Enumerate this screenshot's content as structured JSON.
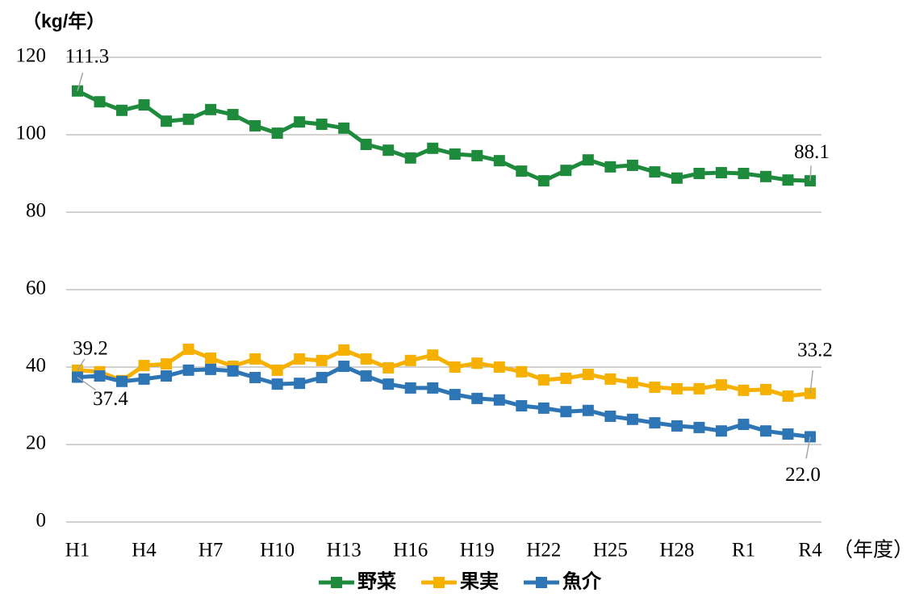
{
  "chart_data": {
    "type": "line",
    "y_label": "（kg/年）",
    "x_label": "（年度）",
    "categories": [
      "H1",
      null,
      null,
      "H4",
      null,
      null,
      "H7",
      null,
      null,
      "H10",
      null,
      null,
      "H13",
      null,
      null,
      "H16",
      null,
      null,
      "H19",
      null,
      null,
      "H22",
      null,
      null,
      "H25",
      null,
      null,
      "H28",
      null,
      null,
      "R1",
      null,
      null,
      "R4"
    ],
    "series": [
      {
        "name": "野菜",
        "color": "#1e8a3c",
        "values": [
          111.3,
          108.5,
          106.3,
          107.7,
          103.5,
          104.0,
          106.5,
          105.2,
          102.3,
          100.4,
          103.3,
          102.7,
          101.7,
          97.5,
          96.0,
          94.0,
          96.5,
          95.0,
          94.6,
          93.3,
          90.6,
          88.1,
          90.8,
          93.5,
          91.7,
          92.1,
          90.4,
          88.8,
          90.0,
          90.2,
          90.0,
          89.2,
          88.3,
          88.1
        ],
        "value_labels": [
          "111.3",
          null,
          null,
          null,
          null,
          null,
          null,
          null,
          null,
          null,
          null,
          null,
          null,
          null,
          null,
          null,
          null,
          null,
          null,
          null,
          null,
          null,
          null,
          null,
          null,
          null,
          null,
          null,
          null,
          null,
          null,
          null,
          null,
          "88.1"
        ]
      },
      {
        "name": "果実",
        "color": "#f5b000",
        "values": [
          39.2,
          38.8,
          36.5,
          40.4,
          40.8,
          44.6,
          42.3,
          40.2,
          42.1,
          39.2,
          42.1,
          41.7,
          44.4,
          42.1,
          39.8,
          41.7,
          43.1,
          40.0,
          41.0,
          40.0,
          38.8,
          36.7,
          37.1,
          38.1,
          36.9,
          36.0,
          34.8,
          34.4,
          34.4,
          35.4,
          34.0,
          34.2,
          32.5,
          33.2
        ],
        "value_labels": [
          "39.2",
          null,
          null,
          null,
          null,
          null,
          null,
          null,
          null,
          null,
          null,
          null,
          null,
          null,
          null,
          null,
          null,
          null,
          null,
          null,
          null,
          null,
          null,
          null,
          null,
          null,
          null,
          null,
          null,
          null,
          null,
          null,
          null,
          "33.2"
        ]
      },
      {
        "name": "魚介",
        "color": "#2e75b6",
        "values": [
          37.4,
          37.7,
          36.3,
          36.9,
          37.7,
          39.2,
          39.4,
          39.0,
          37.3,
          35.6,
          35.8,
          37.3,
          40.2,
          37.7,
          35.6,
          34.6,
          34.6,
          32.9,
          31.9,
          31.5,
          30.0,
          29.4,
          28.5,
          28.8,
          27.3,
          26.5,
          25.6,
          24.8,
          24.4,
          23.5,
          25.2,
          23.5,
          22.7,
          22.0
        ],
        "value_labels": [
          "37.4",
          null,
          null,
          null,
          null,
          null,
          null,
          null,
          null,
          null,
          null,
          null,
          null,
          null,
          null,
          null,
          null,
          null,
          null,
          null,
          null,
          null,
          null,
          null,
          null,
          null,
          null,
          null,
          null,
          null,
          null,
          null,
          null,
          "22.0"
        ]
      }
    ],
    "ylim": [
      0,
      120
    ],
    "yticks": [
      0,
      20,
      40,
      60,
      80,
      100,
      120
    ],
    "grid": true
  }
}
